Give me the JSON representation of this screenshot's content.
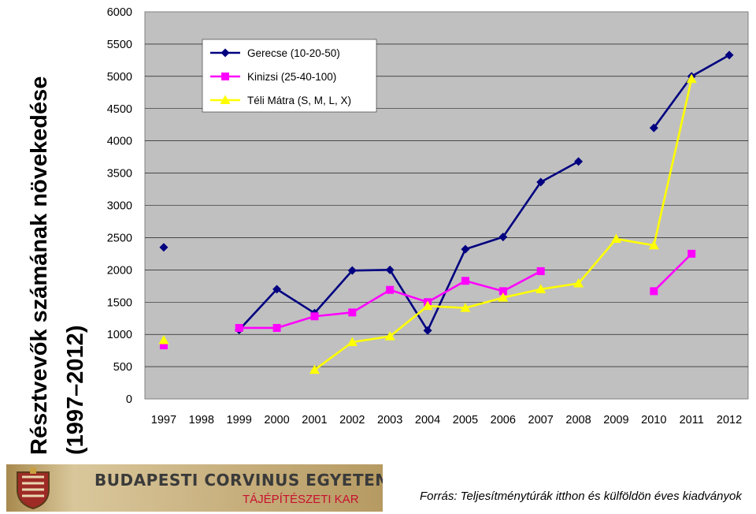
{
  "title_line1": "Résztvevők számának növekedése",
  "title_line2": "(1997–2012)",
  "footer": {
    "university": "BUDAPESTI CORVINUS EGYETEM",
    "faculty": "TÁJÉPÍTÉSZETI KAR"
  },
  "source_note": "Forrás: Teljesítménytúrák itthon és külföldön éves kiadványok",
  "chart_data": {
    "type": "line",
    "title": "",
    "xlabel": "",
    "ylabel": "",
    "x": [
      "1997",
      "1998",
      "1999",
      "2000",
      "2001",
      "2002",
      "2003",
      "2004",
      "2005",
      "2006",
      "2007",
      "2008",
      "2009",
      "2010",
      "2011",
      "2012"
    ],
    "ylim": [
      0,
      6000
    ],
    "yticks": [
      0,
      500,
      1000,
      1500,
      2000,
      2500,
      3000,
      3500,
      4000,
      4500,
      5000,
      5500,
      6000
    ],
    "grid": true,
    "legend_position": "top-left",
    "plot_background": "#c0c0c0",
    "series": [
      {
        "name": "Gerecse (10-20-50)",
        "color": "#000080",
        "marker": "diamond",
        "values": [
          2350,
          null,
          1070,
          1700,
          1330,
          1990,
          2000,
          1060,
          2320,
          2510,
          3360,
          3680,
          null,
          4200,
          5000,
          5330
        ]
      },
      {
        "name": "Kinizsi (25-40-100)",
        "color": "#ff00ff",
        "marker": "square",
        "values": [
          830,
          null,
          1100,
          1100,
          1280,
          1340,
          1690,
          1500,
          1830,
          1670,
          1980,
          null,
          null,
          1670,
          2250,
          null
        ]
      },
      {
        "name": "Téli Mátra (S, M, L, X)",
        "color": "#ffff00",
        "marker": "triangle",
        "values": [
          910,
          null,
          null,
          null,
          450,
          880,
          970,
          1440,
          1410,
          1570,
          1700,
          1790,
          2480,
          2380,
          4960,
          null
        ]
      }
    ]
  }
}
